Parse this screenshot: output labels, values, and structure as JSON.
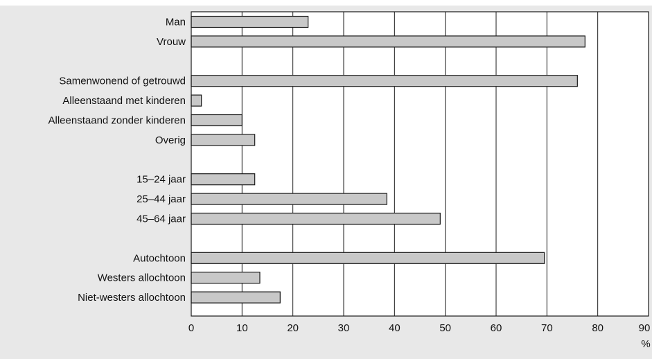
{
  "chart_data": {
    "type": "bar",
    "orientation": "horizontal",
    "title": "",
    "categories": [
      "Man",
      "Vrouw",
      "",
      "Samenwonend of getrouwd",
      "Alleenstaand met kinderen",
      "Alleenstaand zonder kinderen",
      "Overig",
      "",
      "15–24 jaar",
      "25–44 jaar",
      "45–64 jaar",
      "",
      "Autochtoon",
      "Westers allochtoon",
      "Niet-westers allochtoon"
    ],
    "values": [
      23,
      77.5,
      null,
      76,
      2,
      10,
      12.5,
      null,
      12.5,
      38.5,
      49,
      null,
      69.5,
      13.5,
      17.5
    ],
    "xlim": [
      0,
      90
    ],
    "xticks": [
      "0",
      "10",
      "20",
      "30",
      "40",
      "50",
      "60",
      "70",
      "80",
      "90"
    ],
    "xlabel": "%",
    "grid": true
  },
  "colors": {
    "background": "#e8e8e8",
    "plot_background": "#ffffff",
    "bar_fill": "#c8c8c8",
    "bar_stroke": "#1a1a1a",
    "grid": "#1a1a1a"
  }
}
